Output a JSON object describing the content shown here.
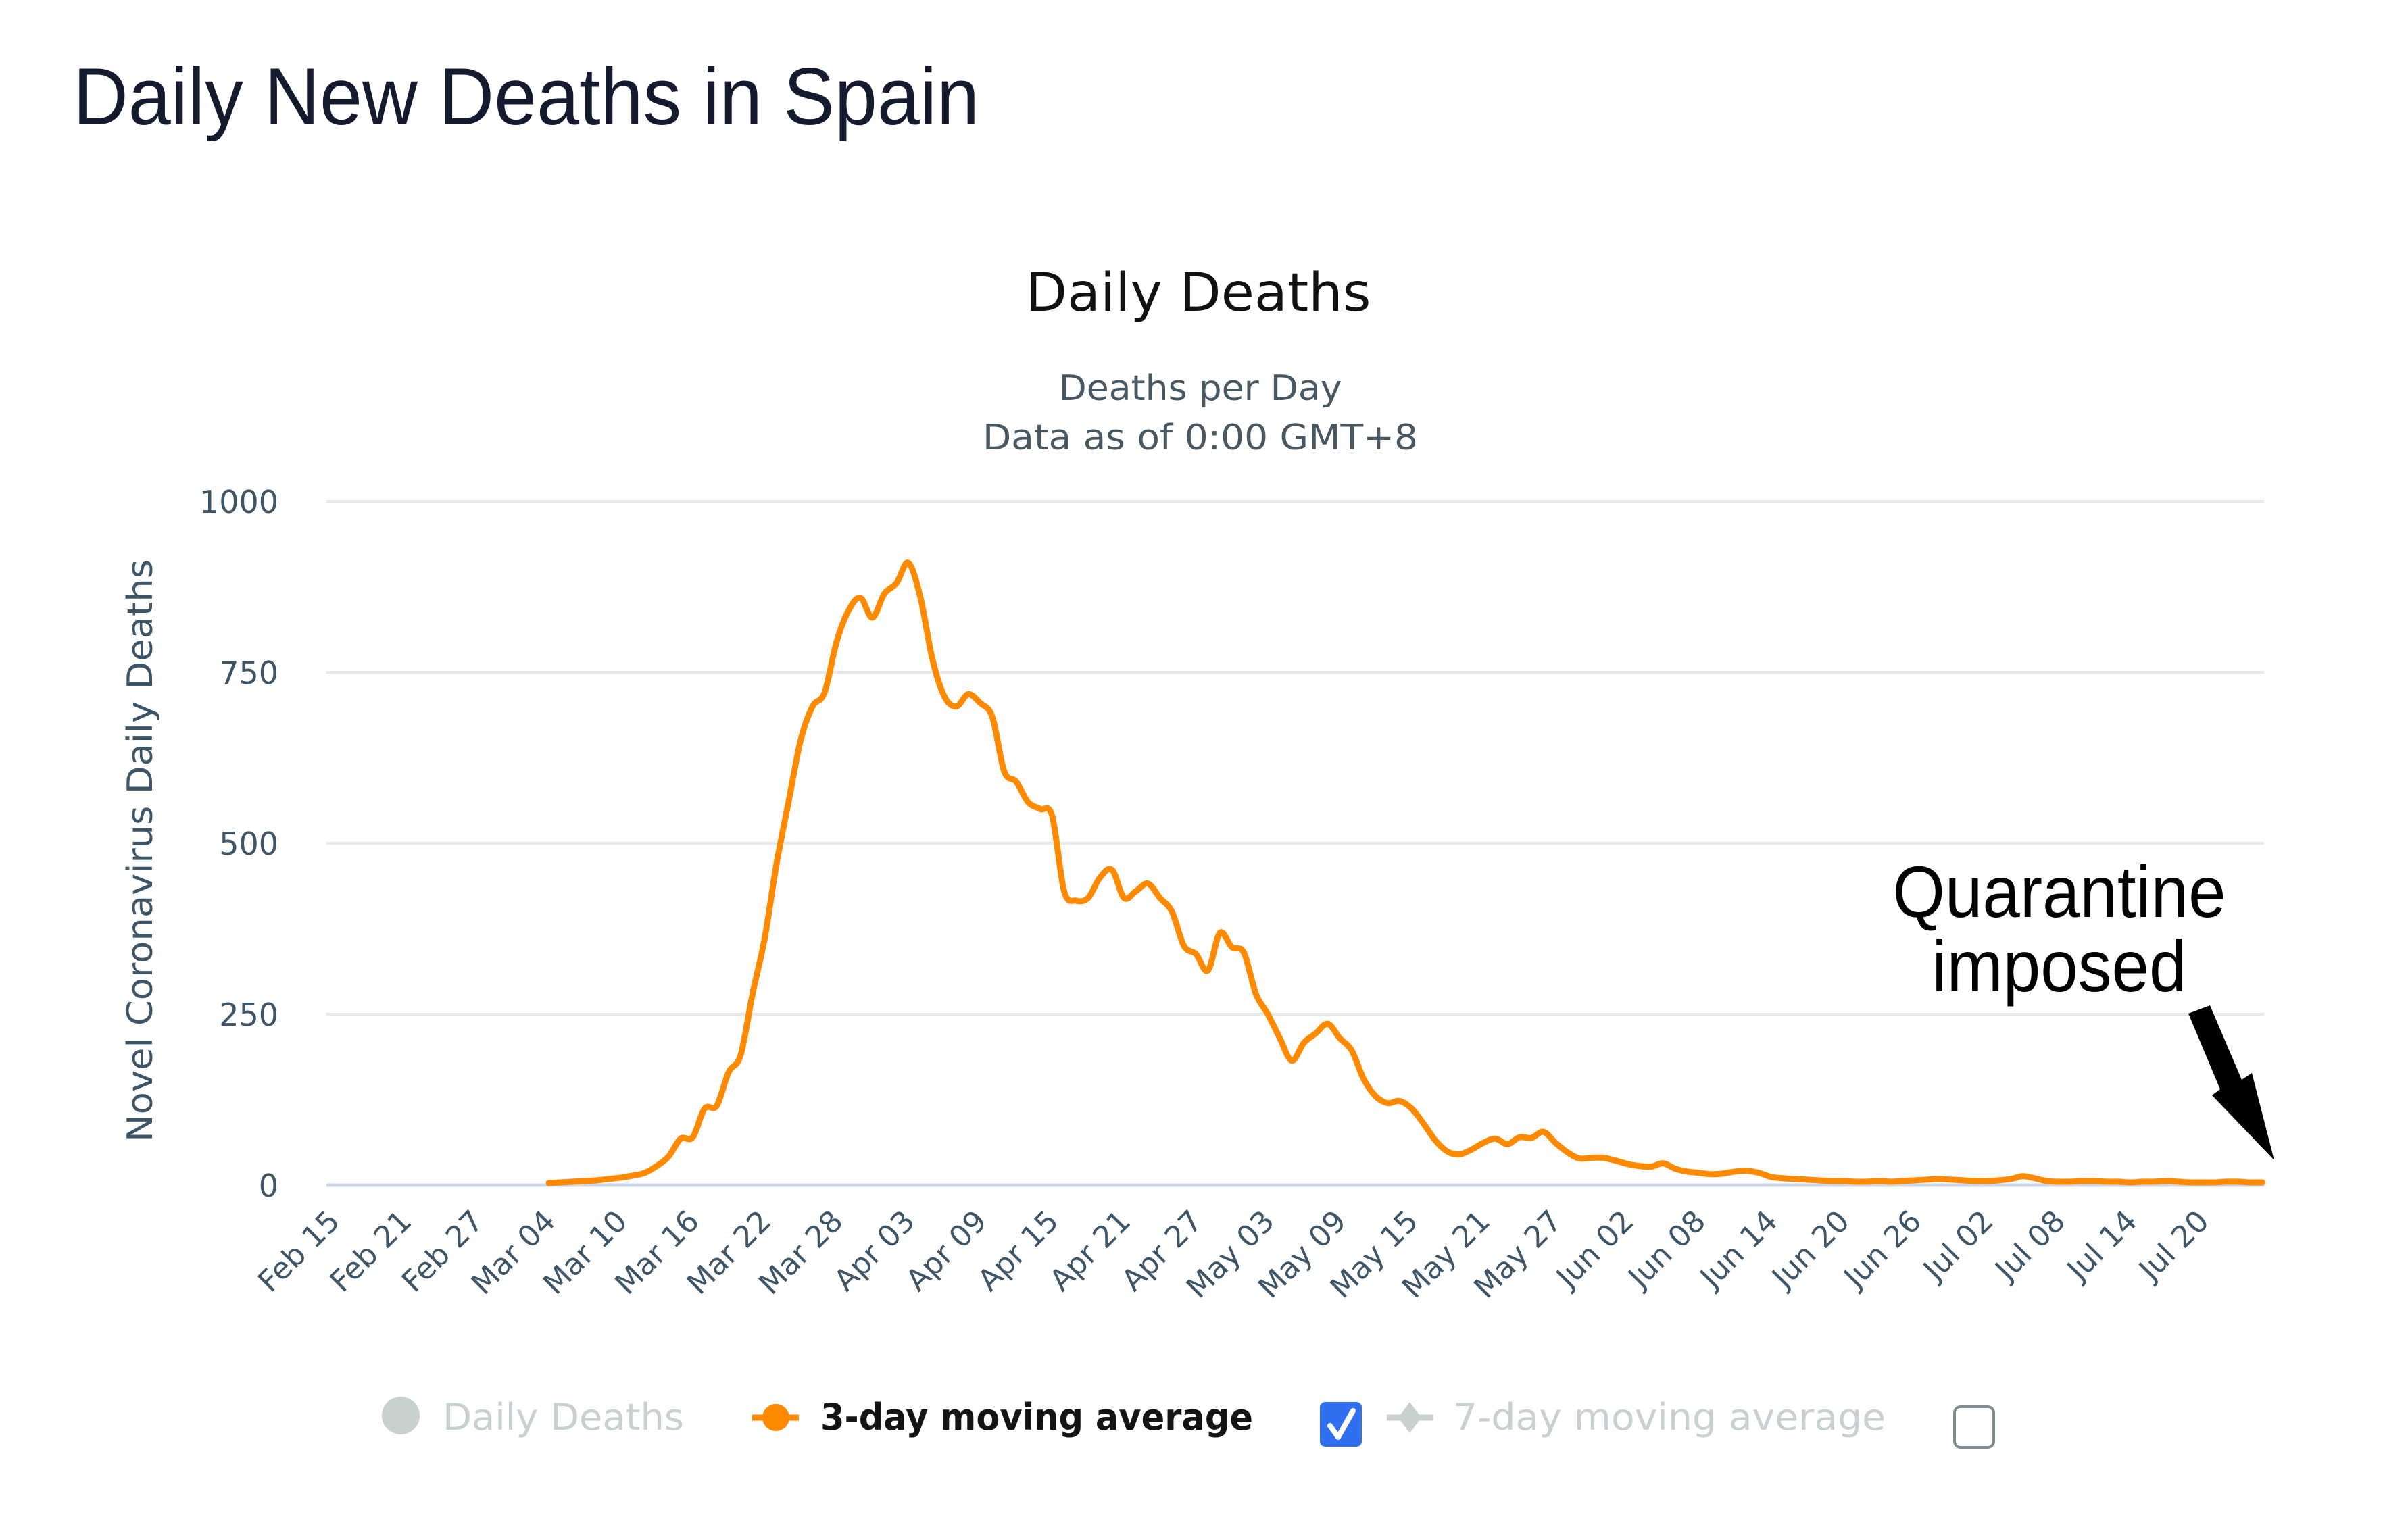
{
  "page": {
    "title": "Daily New Deaths in Spain"
  },
  "chart": {
    "title": "Daily Deaths",
    "subtitle_line1": "Deaths per Day",
    "subtitle_line2": "Data as of 0:00 GMT+8"
  },
  "legend": {
    "items": [
      {
        "label": "Daily Deaths",
        "state": "hidden",
        "color": "#c9d0d0"
      },
      {
        "label": "3-day moving average",
        "state": "visible",
        "color": "#ff8a00",
        "checkbox_checked": true
      },
      {
        "label": "7-day moving average",
        "state": "hidden",
        "color": "#c9d0d0",
        "checkbox_checked": false
      }
    ],
    "checkbox_color": "#2f6ff0"
  },
  "annotation": {
    "line1": "Quarantine",
    "line2": "imposed",
    "arrow": "down-right-arrow",
    "points_to": "Jul 25"
  },
  "chart_data": {
    "type": "line",
    "title": "Daily Deaths",
    "subtitle": [
      "Deaths per Day",
      "Data as of 0:00 GMT+8"
    ],
    "xlabel": "",
    "ylabel": "Novel Coronavirus Daily Deaths",
    "ylim": [
      0,
      1000
    ],
    "yticks": [
      0,
      250,
      500,
      750,
      1000
    ],
    "grid": true,
    "legend_position": "bottom",
    "x_start": "Feb 15",
    "x_tick_interval_days": 6,
    "x_tick_labels": [
      "Feb 15",
      "Feb 21",
      "Feb 27",
      "Mar 04",
      "Mar 10",
      "Mar 16",
      "Mar 22",
      "Mar 28",
      "Apr 03",
      "Apr 09",
      "Apr 15",
      "Apr 21",
      "Apr 27",
      "May 03",
      "May 09",
      "May 15",
      "May 21",
      "May 27",
      "Jun 02",
      "Jun 08",
      "Jun 14",
      "Jun 20",
      "Jun 26",
      "Jul 02",
      "Jul 08",
      "Jul 14",
      "Jul 20"
    ],
    "series": [
      {
        "name": "3-day moving average",
        "color": "#ff8a00",
        "visible": true,
        "first_date": "Mar 04",
        "first_day_index": 18,
        "values": [
          3,
          4,
          5,
          6,
          7,
          9,
          11,
          14,
          18,
          28,
          42,
          68,
          70,
          112,
          116,
          165,
          190,
          280,
          360,
          470,
          560,
          650,
          700,
          720,
          794,
          840,
          859,
          830,
          865,
          880,
          910,
          860,
          770,
          715,
          700,
          718,
          705,
          685,
          605,
          590,
          560,
          550,
          540,
          430,
          416,
          420,
          450,
          461,
          420,
          430,
          441,
          420,
          400,
          350,
          338,
          314,
          369,
          348,
          340,
          280,
          250,
          215,
          182,
          208,
          222,
          236,
          215,
          197,
          155,
          130,
          120,
          123,
          112,
          90,
          65,
          49,
          45,
          52,
          62,
          68,
          60,
          70,
          69,
          78,
          62,
          48,
          39,
          40,
          40,
          36,
          31,
          28,
          27,
          32,
          24,
          20,
          18,
          16,
          17,
          20,
          21,
          18,
          12,
          10,
          9,
          8,
          7,
          6,
          6,
          5,
          5,
          6,
          5,
          6,
          7,
          8,
          9,
          8,
          7,
          6,
          6,
          7,
          9,
          13,
          10,
          6,
          5,
          5,
          6,
          6,
          5,
          5,
          4,
          5,
          5,
          6,
          5,
          4,
          4,
          4,
          5,
          5,
          4,
          4
        ]
      },
      {
        "name": "Daily Deaths",
        "color": "#c9d0d0",
        "visible": false,
        "values": []
      },
      {
        "name": "7-day moving average",
        "color": "#c9d0d0",
        "visible": false,
        "values": []
      }
    ]
  }
}
